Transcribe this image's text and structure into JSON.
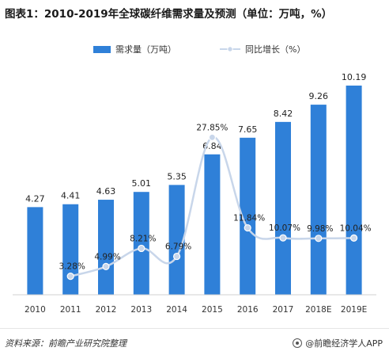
{
  "title": "图表1：2010-2019年全球碳纤维需求量及预测（单位：万吨，%）",
  "legend": {
    "bar_label": "需求量（万吨）",
    "line_label": "同比增长（%）"
  },
  "footer": {
    "source": "资料来源：前瞻产业研究院整理",
    "brand": "@前瞻经济学人APP"
  },
  "colors": {
    "bar": "#2f80d8",
    "line": "#c8d6ea",
    "marker": "#c8d6ea"
  },
  "chart_data": {
    "type": "bar",
    "categories": [
      "2010",
      "2011",
      "2012",
      "2013",
      "2014",
      "2015",
      "2016",
      "2017",
      "2018E",
      "2019E"
    ],
    "series": [
      {
        "name": "需求量（万吨）",
        "type": "bar",
        "values": [
          4.27,
          4.41,
          4.63,
          5.01,
          5.35,
          6.84,
          7.65,
          8.42,
          9.26,
          10.19
        ],
        "labels": [
          "4.27",
          "4.41",
          "4.63",
          "5.01",
          "5.35",
          "6.84",
          "7.65",
          "8.42",
          "9.26",
          "10.19"
        ]
      },
      {
        "name": "同比增长（%）",
        "type": "line",
        "smooth": true,
        "values": [
          null,
          3.28,
          4.99,
          8.21,
          6.79,
          27.85,
          11.84,
          10.07,
          9.98,
          10.04
        ],
        "labels": [
          "",
          "3.28%",
          "4.99%",
          "8.21%",
          "6.79%",
          "27.85%",
          "11.84%",
          "10.07%",
          "9.98%",
          "10.04%"
        ]
      }
    ],
    "bar_ylim": [
      0,
      10.19
    ],
    "line_ylim": [
      0,
      30
    ],
    "legend_position": "top"
  }
}
